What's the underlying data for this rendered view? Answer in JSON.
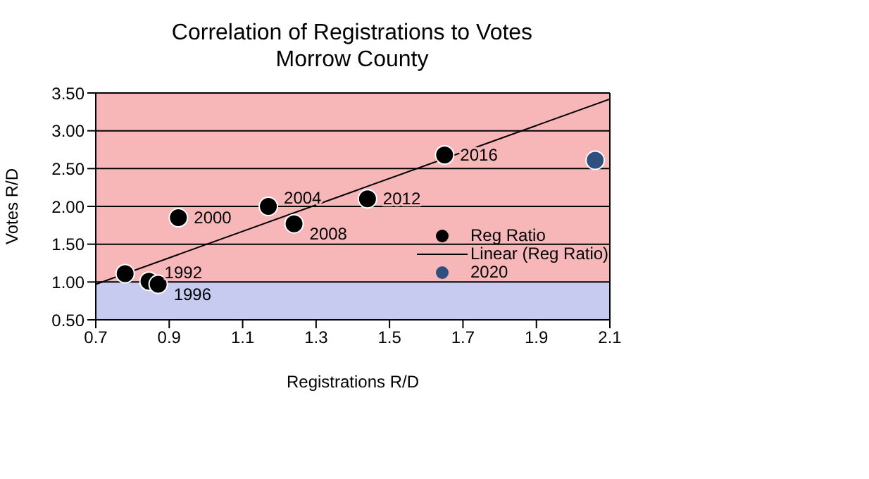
{
  "chart_data": {
    "type": "scatter",
    "title": "Correlation of Registrations to Votes",
    "subtitle": "Morrow County",
    "xlabel": "Registrations R/D",
    "ylabel": "Votes R/D",
    "xlim": [
      0.7,
      2.1
    ],
    "xticks": [
      0.7,
      0.9,
      1.1,
      1.3,
      1.5,
      1.7,
      1.9,
      2.1
    ],
    "ylim": [
      0.5,
      3.5
    ],
    "yticks": [
      {
        "value": 0.5,
        "label": "0.50"
      },
      {
        "value": 1,
        "label": "1.00"
      },
      {
        "value": 1.5,
        "label": "1.50"
      },
      {
        "value": 2,
        "label": "2.00"
      },
      {
        "value": 2.5,
        "label": "2.50"
      },
      {
        "value": 3,
        "label": "3.00"
      },
      {
        "value": 3.5,
        "label": "3.50"
      }
    ],
    "annotations": [
      {
        "text": "1992",
        "x": 0.845,
        "y": 1.01
      },
      {
        "text": "1996",
        "x": 0.87,
        "y": 0.97
      },
      {
        "text": "2000",
        "x": 0.925,
        "y": 1.85
      },
      {
        "text": "2004",
        "x": 1.17,
        "y": 2.0
      },
      {
        "text": "2008",
        "x": 1.24,
        "y": 1.77
      },
      {
        "text": "2012",
        "x": 1.44,
        "y": 2.1
      },
      {
        "text": "2016",
        "x": 1.65,
        "y": 2.68
      }
    ],
    "grid": "y",
    "legend": "right",
    "marker": "circle",
    "bands": [
      {
        "axis": "y",
        "from": 0.5,
        "to": 1,
        "color": "#c8cbf0"
      },
      {
        "axis": "y",
        "from": 1,
        "to": 3.5,
        "color": "#f7b6b8"
      }
    ],
    "series": [
      {
        "name": "Reg Ratio",
        "color": "#000000",
        "x": [
          0.78,
          0.845,
          0.87,
          0.925,
          1.17,
          1.24,
          1.44,
          1.65
        ],
        "values": [
          1.11,
          1.01,
          0.97,
          1.85,
          2.0,
          1.77,
          2.1,
          2.68
        ]
      },
      {
        "name": "Linear (Reg Ratio)",
        "type": "line",
        "color": "#000000",
        "x": [
          0.7,
          2.1
        ],
        "values": [
          0.97,
          3.42
        ],
        "marker": "none"
      },
      {
        "name": "2020",
        "color": "#2f4f7f",
        "x": [
          2.06
        ],
        "values": [
          2.61
        ]
      }
    ]
  }
}
